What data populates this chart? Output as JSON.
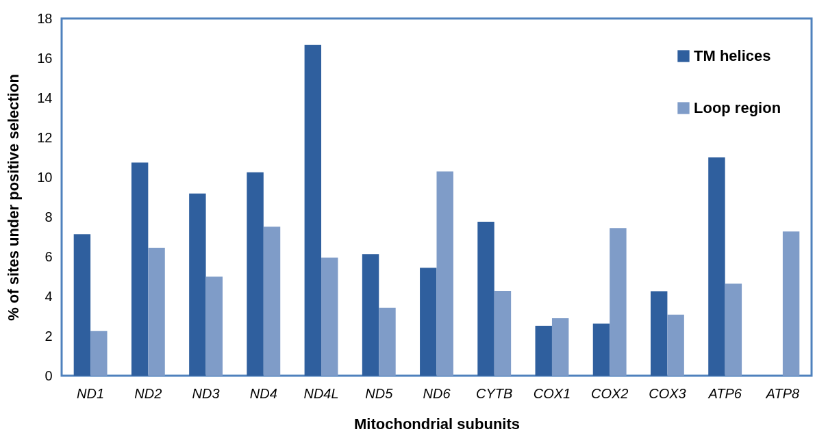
{
  "chart_data": {
    "type": "bar",
    "xlabel": "Mitochondrial subunits",
    "ylabel": "% of sites under positive selection",
    "categories": [
      "ND1",
      "ND2",
      "ND3",
      "ND4",
      "ND4L",
      "ND5",
      "ND6",
      "CYTB",
      "COX1",
      "COX2",
      "COX3",
      "ATP6",
      "ATP8"
    ],
    "series": [
      {
        "name": "TM helices",
        "color": "#2f5f9e",
        "values": [
          7.13,
          10.74,
          9.18,
          10.25,
          16.66,
          6.13,
          5.44,
          7.76,
          2.52,
          2.63,
          4.26,
          11.0,
          null
        ]
      },
      {
        "name": "Loop region",
        "color": "#7f9cc8",
        "values": [
          2.25,
          6.45,
          4.99,
          7.51,
          5.95,
          3.42,
          10.29,
          4.28,
          2.9,
          7.44,
          3.08,
          4.64,
          7.27
        ]
      }
    ],
    "ylim": [
      0,
      18
    ],
    "yticks": [
      0,
      2,
      4,
      6,
      8,
      10,
      12,
      14,
      16,
      18
    ],
    "grid": false,
    "legend": "top right"
  }
}
